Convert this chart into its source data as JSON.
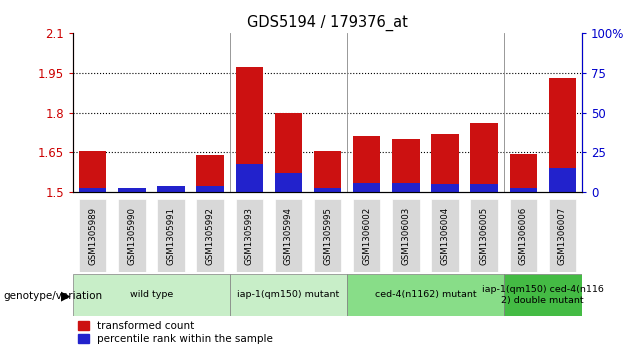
{
  "title": "GDS5194 / 179376_at",
  "samples": [
    "GSM1305989",
    "GSM1305990",
    "GSM1305991",
    "GSM1305992",
    "GSM1305993",
    "GSM1305994",
    "GSM1305995",
    "GSM1306002",
    "GSM1306003",
    "GSM1306004",
    "GSM1306005",
    "GSM1306006",
    "GSM1306007"
  ],
  "red_values": [
    1.655,
    1.503,
    1.515,
    1.64,
    1.97,
    1.8,
    1.655,
    1.71,
    1.7,
    1.72,
    1.76,
    1.645,
    1.93
  ],
  "blue_pct": [
    3,
    3,
    4,
    4,
    18,
    12,
    3,
    6,
    6,
    5,
    5,
    3,
    15
  ],
  "y_min": 1.5,
  "y_max": 2.1,
  "y_ticks_left": [
    1.5,
    1.65,
    1.8,
    1.95,
    2.1
  ],
  "y_ticks_right": [
    0,
    25,
    50,
    75,
    100
  ],
  "groups": [
    {
      "label": "wild type",
      "start": 0,
      "end": 3,
      "color": "#c8eec8"
    },
    {
      "label": "iap-1(qm150) mutant",
      "start": 4,
      "end": 6,
      "color": "#c8eec8"
    },
    {
      "label": "ced-4(n1162) mutant",
      "start": 7,
      "end": 10,
      "color": "#88dd88"
    },
    {
      "label": "iap-1(qm150) ced-4(n116\n2) double mutant",
      "start": 11,
      "end": 12,
      "color": "#44bb44"
    }
  ],
  "bar_color_red": "#cc1111",
  "bar_color_blue": "#2222cc",
  "plot_bg": "#ffffff",
  "left_tick_color": "#cc0000",
  "right_tick_color": "#0000cc",
  "legend_label_red": "transformed count",
  "legend_label_blue": "percentile rank within the sample",
  "genotype_label": "genotype/variation",
  "sample_box_color": "#d8d8d8",
  "grid_color": "#000000",
  "separator_color": "#888888"
}
